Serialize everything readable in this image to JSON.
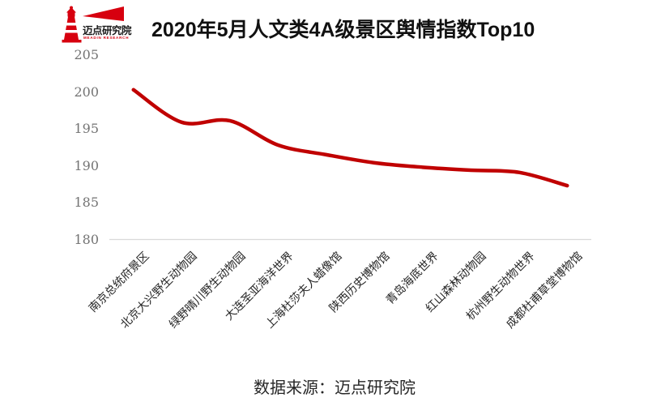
{
  "logo": {
    "name": "迈点研究院",
    "tagline": "MEADIN RESEARCH",
    "brand_color": "#d7000f"
  },
  "title": "2020年5月人文类4A级景区舆情指数Top10",
  "footer": {
    "source": "数据来源：迈点研究院"
  },
  "chart_data": {
    "type": "line",
    "title": "2020年5月人文类4A级景区舆情指数Top10",
    "categories": [
      "南京总统府景区",
      "北京大兴野生动物园",
      "绿野晴川野生动物园",
      "大连圣亚海洋世界",
      "上海杜莎夫人蜡像馆",
      "陕西历史博物馆",
      "青岛海底世界",
      "红山森林动物园",
      "杭州野生动物世界",
      "成都杜甫草堂博物馆"
    ],
    "values": [
      200.3,
      195.9,
      196.1,
      192.8,
      191.5,
      190.4,
      189.8,
      189.4,
      189.1,
      187.3
    ],
    "xlabel": "",
    "ylabel": "",
    "ylim": [
      180,
      205
    ],
    "yticks": [
      205,
      200,
      195,
      190,
      185,
      180
    ],
    "grid": false,
    "legend": "none",
    "smooth": true,
    "xlabel_rotation": -45,
    "line_color": "#c00000",
    "axis_color": "#d9d9d9"
  }
}
